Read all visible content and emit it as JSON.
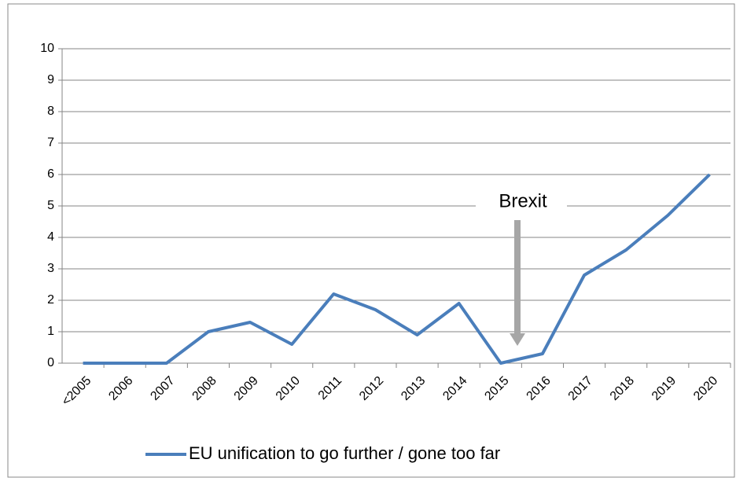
{
  "chart_data": {
    "type": "line",
    "categories": [
      "<2005",
      "2006",
      "2007",
      "2008",
      "2009",
      "2010",
      "2011",
      "2012",
      "2013",
      "2014",
      "2015",
      "2016",
      "2017",
      "2018",
      "2019",
      "2020"
    ],
    "series": [
      {
        "name": "EU unification to go further / gone too far",
        "color": "#4a7ebb",
        "values": [
          0,
          0,
          0,
          1,
          1.3,
          0.6,
          2.2,
          1.7,
          0.9,
          1.9,
          0,
          0.3,
          2.8,
          3.6,
          4.7,
          6.0
        ]
      }
    ],
    "ylim": [
      0,
      10
    ],
    "yticks": [
      0,
      1,
      2,
      3,
      4,
      5,
      6,
      7,
      8,
      9,
      10
    ],
    "grid": true,
    "annotation": "Brexit",
    "legend": "bottom"
  }
}
